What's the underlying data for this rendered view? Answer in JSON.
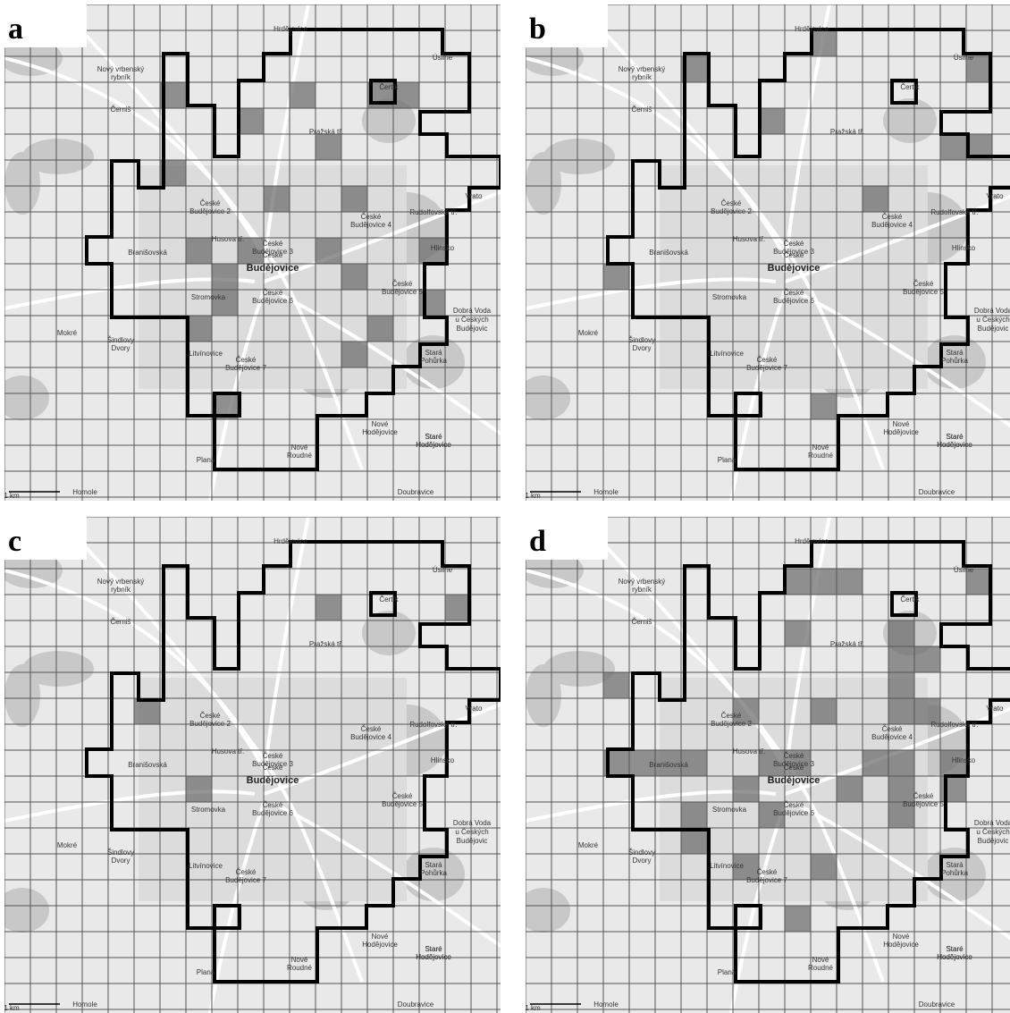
{
  "panels": [
    {
      "label": "a"
    },
    {
      "label": "b"
    },
    {
      "label": "c"
    },
    {
      "label": "d"
    }
  ],
  "places": [
    "Hrdějovice",
    "Úsilné",
    "Čertík",
    "Vrato",
    "Hlinsko",
    "Dobrá Voda",
    "u Českých",
    "Budějovic",
    "Stará",
    "Pohůrka",
    "Nové",
    "Hodějovice",
    "Staré",
    "Hodějovice",
    "Nové",
    "Roudné",
    "Planá",
    "Homole",
    "Doubravice",
    "Litvínovice",
    "Mokré",
    "Šindlovy",
    "Dvory",
    "Stromovka",
    "České",
    "Budějovice",
    "České",
    "Budějovice 7",
    "České",
    "Budějovice 6",
    "České",
    "Budějovice 5",
    "České",
    "Budějovice 4",
    "České",
    "Budějovice 3",
    "České",
    "Budějovice 2",
    "Nový vrbenský",
    "rybník",
    "Černiš",
    "Branišovská",
    "Rudolfovská tř.",
    "Husova tř.",
    "Pražská tř.",
    "Staré",
    "Hodějovice"
  ],
  "scale": "1 km"
}
